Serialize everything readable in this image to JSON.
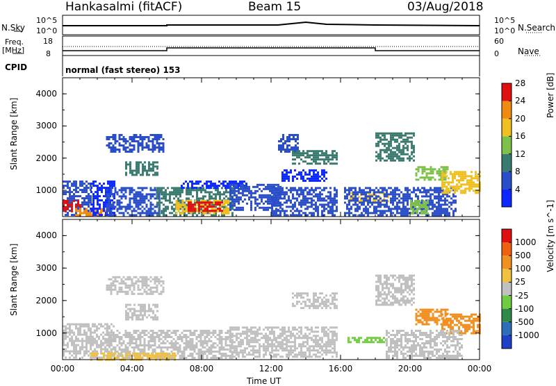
{
  "header": {
    "station": "Hankasalmi (fitACF)",
    "beam": "Beam 15",
    "date": "03/Aug/2018"
  },
  "top_panels": {
    "nsky_label": "N.Sky",
    "nsky_ticks": [
      "10^5",
      "10^0"
    ],
    "nsearch_label": "N.Search",
    "nsearch_ticks": [
      "10^5",
      "10^0"
    ],
    "freq_label_1": "Freq.",
    "freq_label_2": "[MHz]",
    "freq_ticks": [
      "18",
      "8"
    ],
    "nave_label": "Nave",
    "nave_ticks": [
      "60",
      "0"
    ],
    "cpid_label": "CPID",
    "cpid_text": "normal (fast stereo) 153"
  },
  "chart_data": [
    {
      "type": "heatmap",
      "title": "",
      "parameter": "Power",
      "ylabel": "Slant Range [km]",
      "xlabel": "",
      "ylim": [
        180,
        4500
      ],
      "xlim_hours": [
        0,
        24
      ],
      "yticks": [
        "1000",
        "2000",
        "3000",
        "4000"
      ],
      "colorbar_label": "Power [dB]",
      "colorbar_ticks": [
        "4",
        "8",
        "12",
        "16",
        "20",
        "24",
        "28"
      ],
      "colorbar_colors": [
        "#0a28ff",
        "#2a4ec8",
        "#3a7b70",
        "#7dc04a",
        "#f0c020",
        "#f08a10",
        "#e01010"
      ],
      "regions": [
        {
          "x": [
            0.0,
            1.6
          ],
          "y": [
            250,
            1300
          ],
          "level": 1
        },
        {
          "x": [
            0.0,
            1.0
          ],
          "y": [
            350,
            700
          ],
          "level": 6
        },
        {
          "x": [
            0.6,
            2.6
          ],
          "y": [
            200,
            450
          ],
          "level": 5
        },
        {
          "x": [
            1.6,
            3.0
          ],
          "y": [
            250,
            1300
          ],
          "level": 0
        },
        {
          "x": [
            2.5,
            5.8
          ],
          "y": [
            2200,
            2750
          ],
          "level": 1
        },
        {
          "x": [
            3.6,
            5.5
          ],
          "y": [
            1450,
            1900
          ],
          "level": 2
        },
        {
          "x": [
            2.5,
            5.6
          ],
          "y": [
            200,
            1100
          ],
          "level": 1
        },
        {
          "x": [
            5.4,
            9.8
          ],
          "y": [
            250,
            1100
          ],
          "level": 2
        },
        {
          "x": [
            6.5,
            9.6
          ],
          "y": [
            300,
            700
          ],
          "level": 4
        },
        {
          "x": [
            7.2,
            9.2
          ],
          "y": [
            330,
            650
          ],
          "level": 6
        },
        {
          "x": [
            6.8,
            10.6
          ],
          "y": [
            1050,
            1300
          ],
          "level": 0
        },
        {
          "x": [
            9.6,
            12.6
          ],
          "y": [
            400,
            1200
          ],
          "level": 1
        },
        {
          "x": [
            12.0,
            15.8
          ],
          "y": [
            250,
            1100
          ],
          "level": 1
        },
        {
          "x": [
            12.4,
            13.6
          ],
          "y": [
            2200,
            2750
          ],
          "level": 1
        },
        {
          "x": [
            13.2,
            15.8
          ],
          "y": [
            1800,
            2250
          ],
          "level": 2
        },
        {
          "x": [
            12.6,
            15.2
          ],
          "y": [
            1300,
            1650
          ],
          "level": 0
        },
        {
          "x": [
            16.4,
            18.8
          ],
          "y": [
            650,
            950
          ],
          "level": 4
        },
        {
          "x": [
            16.2,
            22.6
          ],
          "y": [
            250,
            1100
          ],
          "level": 1
        },
        {
          "x": [
            18.0,
            20.2
          ],
          "y": [
            1900,
            2800
          ],
          "level": 2
        },
        {
          "x": [
            20.3,
            22.2
          ],
          "y": [
            1300,
            1750
          ],
          "level": 3
        },
        {
          "x": [
            21.8,
            24.0
          ],
          "y": [
            900,
            1600
          ],
          "level": 4
        },
        {
          "x": [
            20.0,
            21.0
          ],
          "y": [
            300,
            700
          ],
          "level": 3
        }
      ]
    },
    {
      "type": "heatmap",
      "title": "",
      "parameter": "Velocity",
      "ylabel": "Slant Range [km]",
      "xlabel": "Time UT",
      "ylim": [
        180,
        4500
      ],
      "xlim_hours": [
        0,
        24
      ],
      "yticks": [
        "1000",
        "2000",
        "3000",
        "4000"
      ],
      "xticks": [
        "00:00",
        "04:00",
        "08:00",
        "12:00",
        "16:00",
        "20:00",
        "00:00"
      ],
      "colorbar_label": "Velocity [m s^-1]",
      "colorbar_ticks": [
        "1000",
        "500",
        "100",
        "25",
        "-25",
        "-100",
        "-500",
        "-1000"
      ],
      "colorbar_colors": [
        "#2040c8",
        "#2e6db8",
        "#2f8a4a",
        "#70cc40",
        "#c0c0c0",
        "#f0c040",
        "#f09020",
        "#f06010",
        "#e01010"
      ],
      "regions": [
        {
          "x": [
            0.0,
            3.0
          ],
          "y": [
            250,
            1300
          ],
          "level": 4
        },
        {
          "x": [
            2.5,
            5.8
          ],
          "y": [
            2200,
            2750
          ],
          "level": 4
        },
        {
          "x": [
            3.6,
            5.5
          ],
          "y": [
            1450,
            1900
          ],
          "level": 4
        },
        {
          "x": [
            2.5,
            9.8
          ],
          "y": [
            250,
            1100
          ],
          "level": 4
        },
        {
          "x": [
            1.6,
            6.5
          ],
          "y": [
            200,
            400
          ],
          "level": 5
        },
        {
          "x": [
            9.6,
            15.8
          ],
          "y": [
            250,
            1200
          ],
          "level": 4
        },
        {
          "x": [
            13.2,
            15.8
          ],
          "y": [
            1800,
            2250
          ],
          "level": 4
        },
        {
          "x": [
            16.4,
            18.6
          ],
          "y": [
            720,
            880
          ],
          "level": 3
        },
        {
          "x": [
            18.0,
            20.2
          ],
          "y": [
            1900,
            2800
          ],
          "level": 4
        },
        {
          "x": [
            20.3,
            22.2
          ],
          "y": [
            1300,
            1750
          ],
          "level": 6
        },
        {
          "x": [
            21.8,
            24.0
          ],
          "y": [
            1000,
            1600
          ],
          "level": 6
        },
        {
          "x": [
            18.6,
            23.0
          ],
          "y": [
            250,
            1100
          ],
          "level": 4
        }
      ]
    }
  ]
}
